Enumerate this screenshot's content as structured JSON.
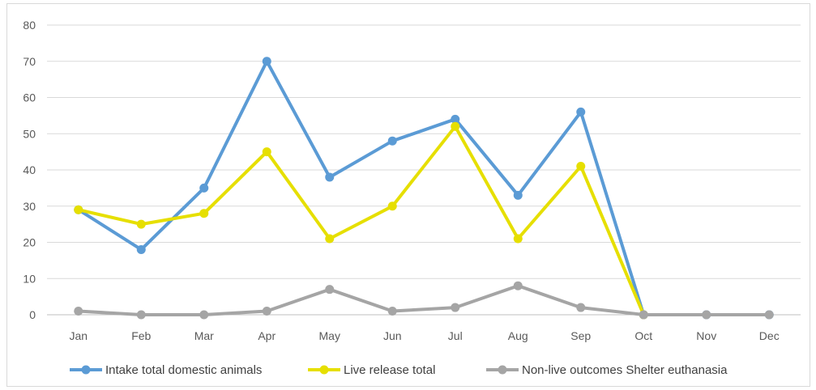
{
  "chart_data": {
    "type": "line",
    "title": "",
    "xlabel": "",
    "ylabel": "",
    "categories": [
      "Jan",
      "Feb",
      "Mar",
      "Apr",
      "May",
      "Jun",
      "Jul",
      "Aug",
      "Sep",
      "Oct",
      "Nov",
      "Dec"
    ],
    "ylim": [
      0,
      80
    ],
    "yticks": [
      "0",
      "10",
      "20",
      "30",
      "40",
      "50",
      "60",
      "70",
      "80"
    ],
    "grid": true,
    "legend_position": "bottom",
    "series": [
      {
        "name": "Intake total domestic animals",
        "color": "#5b9bd5",
        "values": [
          29,
          18,
          35,
          70,
          38,
          48,
          54,
          33,
          56,
          0,
          0,
          0
        ]
      },
      {
        "name": "Live release total",
        "color": "#e6df00",
        "values": [
          29,
          25,
          28,
          45,
          21,
          30,
          52,
          21,
          41,
          0,
          null,
          null
        ]
      },
      {
        "name": "Non-live outcomes Shelter euthanasia",
        "color": "#a5a5a5",
        "values": [
          1,
          0,
          0,
          1,
          7,
          1,
          2,
          8,
          2,
          0,
          0,
          0
        ]
      }
    ]
  }
}
